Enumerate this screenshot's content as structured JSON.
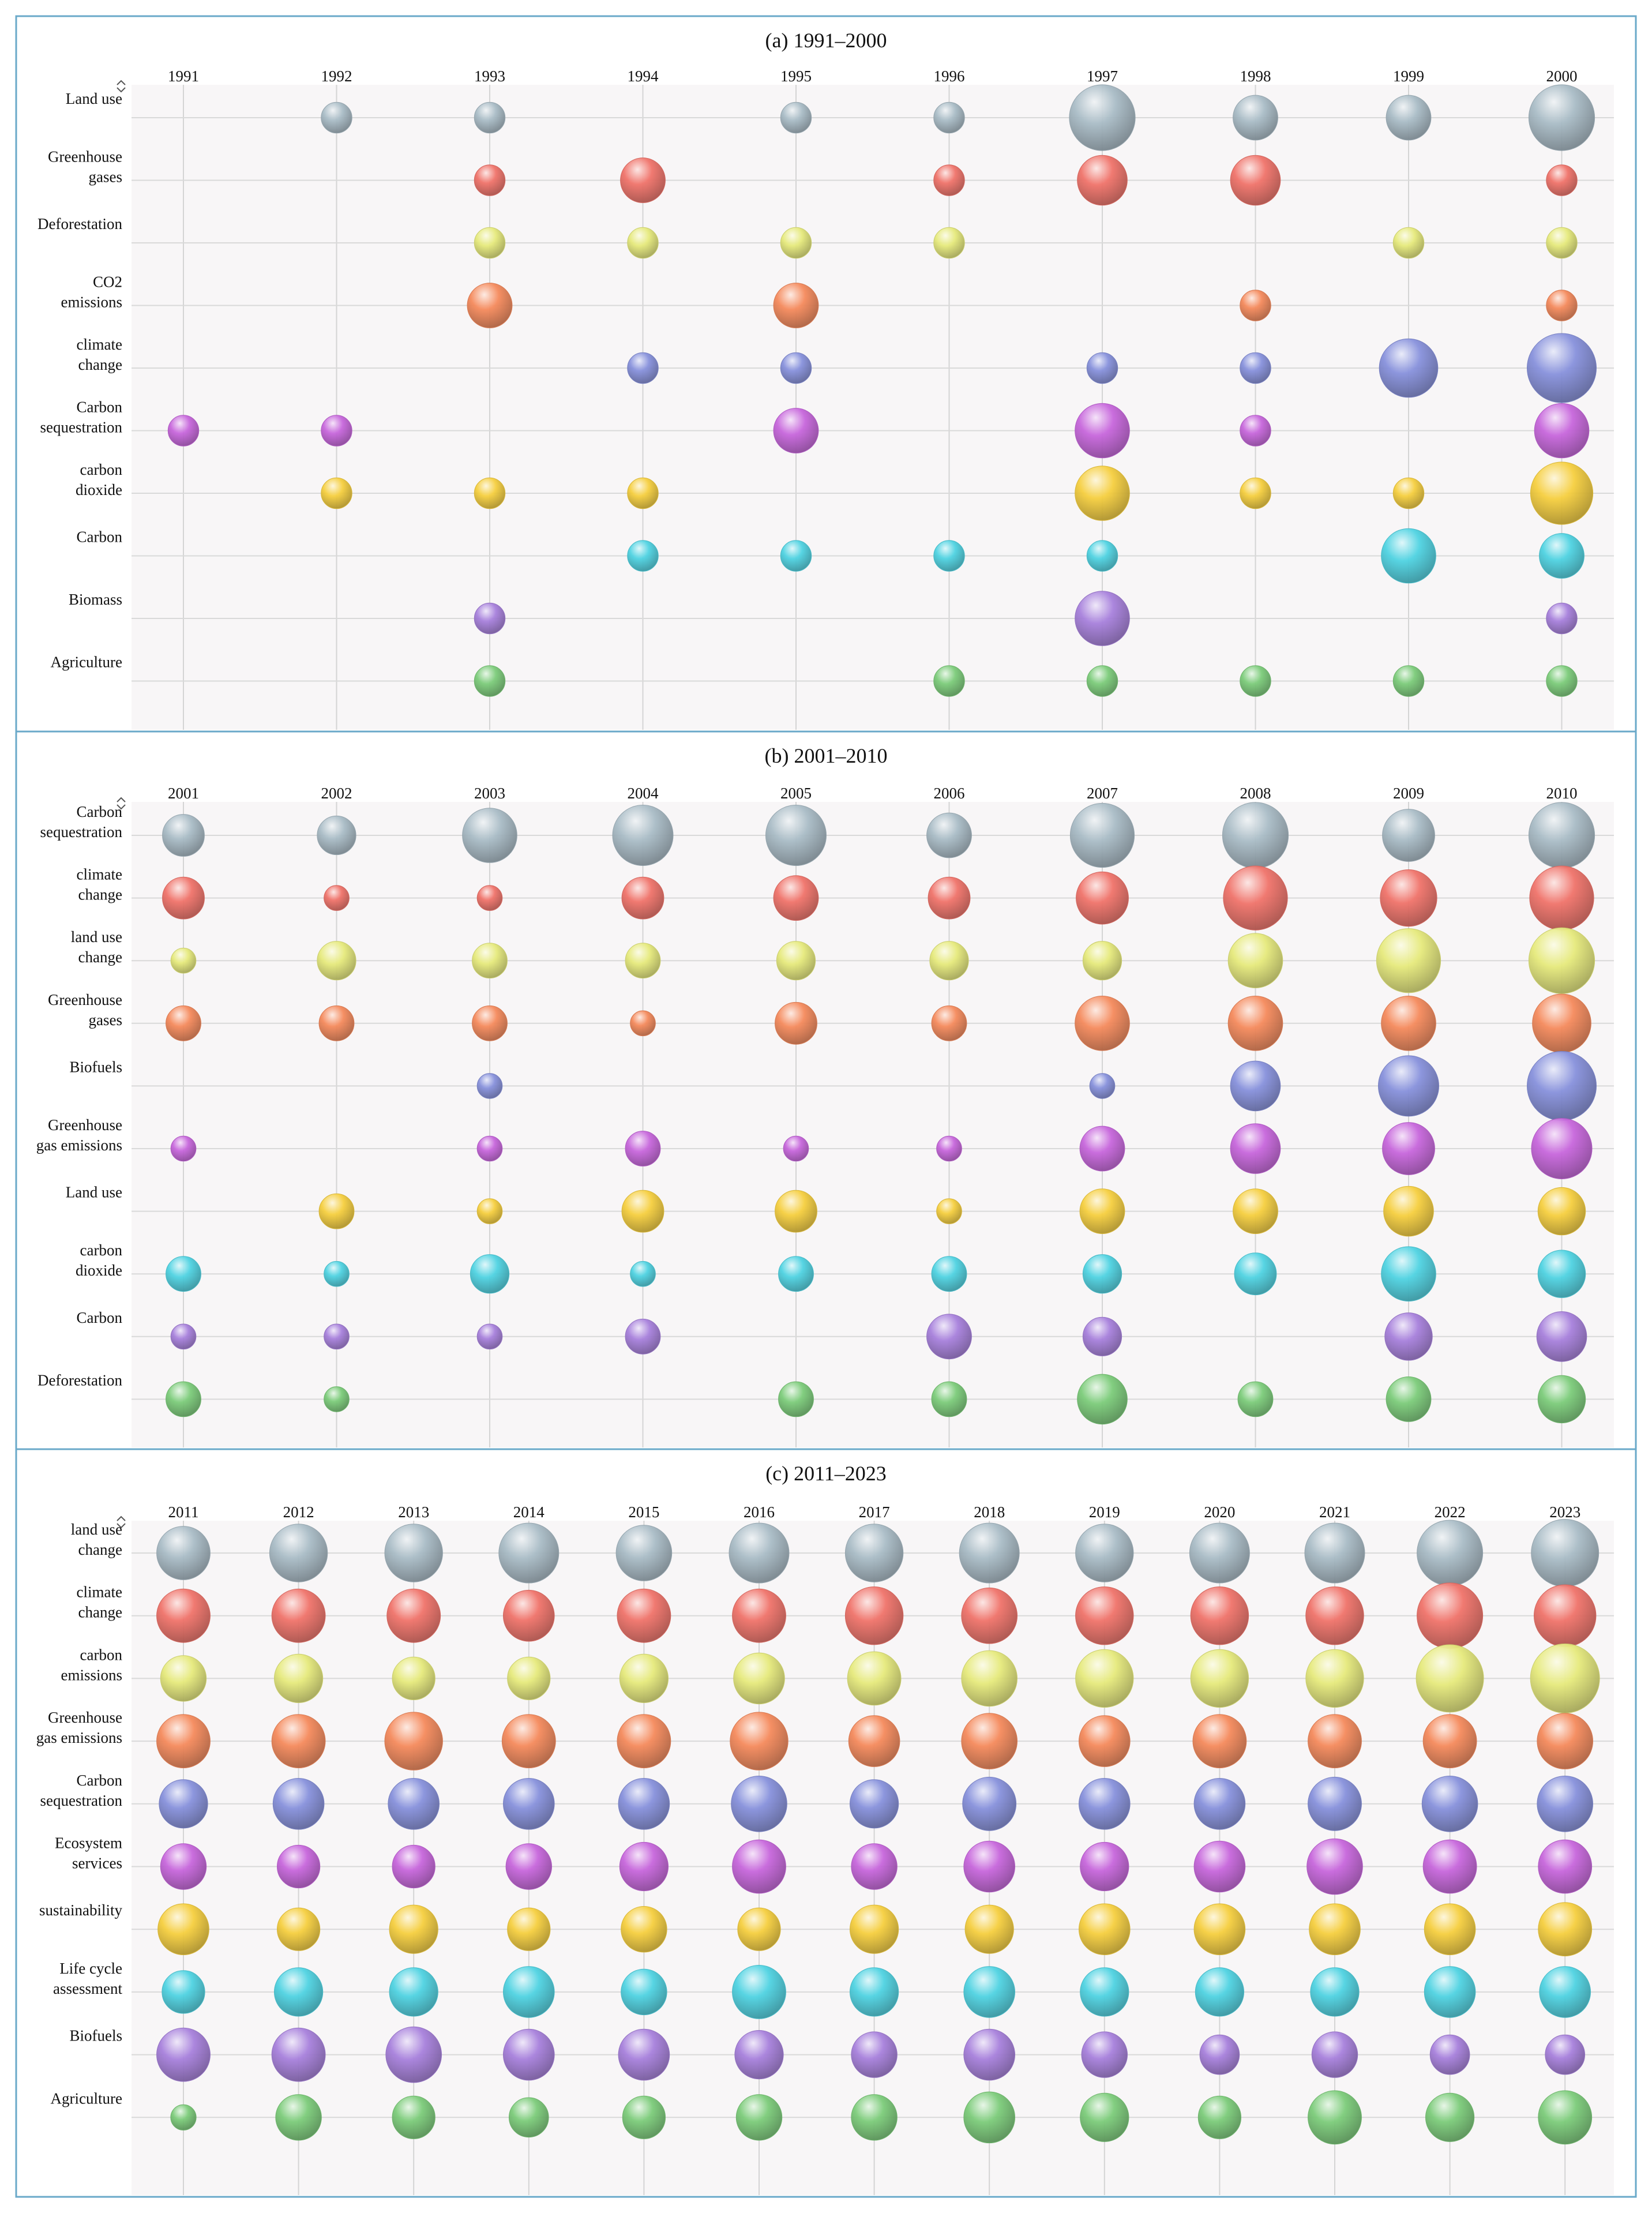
{
  "chart_data": [
    {
      "type": "bubble",
      "title": "(a) 1991–2000",
      "xlabel": "",
      "ylabel": "",
      "years": [
        "1991",
        "1992",
        "1993",
        "1994",
        "1995",
        "1996",
        "1997",
        "1998",
        "1999",
        "2000"
      ],
      "series": [
        {
          "name": "Land use",
          "lines": [
            "Land use"
          ],
          "color": "#a9bcc6",
          "values": [
            0,
            1,
            1,
            0,
            1,
            1,
            8,
            3,
            3,
            8
          ]
        },
        {
          "name": "Greenhouse gases",
          "lines": [
            "Greenhouse",
            "gases"
          ],
          "color": "#f0736a",
          "values": [
            0,
            0,
            1,
            3,
            0,
            1,
            4,
            4,
            0,
            1
          ]
        },
        {
          "name": "Deforestation",
          "lines": [
            "Deforestation"
          ],
          "color": "#e6ea7c",
          "values": [
            0,
            0,
            1,
            1,
            1,
            1,
            0,
            0,
            1,
            1
          ]
        },
        {
          "name": "CO2 emissions",
          "lines": [
            "CO2",
            "emissions"
          ],
          "color": "#f58a5c",
          "values": [
            0,
            0,
            3,
            0,
            3,
            0,
            0,
            1,
            0,
            1
          ]
        },
        {
          "name": "climate change",
          "lines": [
            "climate",
            "change"
          ],
          "color": "#8791dc",
          "values": [
            0,
            0,
            0,
            1,
            1,
            0,
            1,
            1,
            6,
            9
          ]
        },
        {
          "name": "Carbon sequestration",
          "lines": [
            "Carbon",
            "sequestration"
          ],
          "color": "#c766dc",
          "values": [
            1,
            1,
            0,
            0,
            3,
            0,
            5,
            1,
            0,
            5
          ]
        },
        {
          "name": "carbon dioxide",
          "lines": [
            "carbon",
            "dioxide"
          ],
          "color": "#f6cf3f",
          "values": [
            0,
            1,
            1,
            1,
            0,
            0,
            5,
            1,
            1,
            7
          ]
        },
        {
          "name": "Carbon",
          "lines": [
            "Carbon"
          ],
          "color": "#4fd3e2",
          "values": [
            0,
            0,
            0,
            1,
            1,
            1,
            1,
            0,
            5,
            3
          ]
        },
        {
          "name": "Biomass",
          "lines": [
            "Biomass"
          ],
          "color": "#a780dc",
          "values": [
            0,
            0,
            1,
            0,
            0,
            0,
            5,
            0,
            0,
            1
          ]
        },
        {
          "name": "Agriculture",
          "lines": [
            "Agriculture"
          ],
          "color": "#7ccc7a",
          "values": [
            0,
            0,
            1,
            0,
            0,
            1,
            1,
            1,
            1,
            1
          ]
        }
      ]
    },
    {
      "type": "bubble",
      "title": "(b) 2001–2010",
      "xlabel": "",
      "ylabel": "",
      "years": [
        "2001",
        "2002",
        "2003",
        "2004",
        "2005",
        "2006",
        "2007",
        "2008",
        "2009",
        "2010"
      ],
      "series": [
        {
          "name": "Carbon sequestration",
          "lines": [
            "Carbon",
            "sequestration"
          ],
          "color": "#a9bcc6",
          "values": [
            5,
            4,
            10,
            13,
            13,
            6,
            15,
            16,
            9,
            16
          ]
        },
        {
          "name": "climate change",
          "lines": [
            "climate",
            "change"
          ],
          "color": "#f0736a",
          "values": [
            5,
            1,
            1,
            5,
            6,
            5,
            9,
            15,
            11,
            15
          ]
        },
        {
          "name": "land use change",
          "lines": [
            "land use",
            "change"
          ],
          "color": "#e6ea7c",
          "values": [
            1,
            4,
            3,
            3,
            4,
            4,
            4,
            10,
            15,
            16
          ]
        },
        {
          "name": "Greenhouse gases",
          "lines": [
            "Greenhouse",
            "gases"
          ],
          "color": "#f58a5c",
          "values": [
            3,
            3,
            3,
            1,
            5,
            3,
            10,
            10,
            10,
            12
          ]
        },
        {
          "name": "Biofuels",
          "lines": [
            "Biofuels"
          ],
          "color": "#8791dc",
          "values": [
            0,
            0,
            1,
            0,
            0,
            0,
            1,
            8,
            13,
            18
          ]
        },
        {
          "name": "Greenhouse gas emissions",
          "lines": [
            "Greenhouse",
            "gas emissions"
          ],
          "color": "#c766dc",
          "values": [
            1,
            0,
            1,
            3,
            1,
            1,
            6,
            8,
            9,
            13
          ]
        },
        {
          "name": "Land use",
          "lines": [
            "Land use"
          ],
          "color": "#f6cf3f",
          "values": [
            0,
            3,
            1,
            5,
            5,
            1,
            6,
            6,
            8,
            7
          ]
        },
        {
          "name": "carbon dioxide",
          "lines": [
            "carbon",
            "dioxide"
          ],
          "color": "#4fd3e2",
          "values": [
            3,
            1,
            4,
            1,
            3,
            3,
            4,
            5,
            10,
            7
          ]
        },
        {
          "name": "Carbon",
          "lines": [
            "Carbon"
          ],
          "color": "#a780dc",
          "values": [
            1,
            1,
            1,
            3,
            0,
            6,
            4,
            0,
            7,
            8
          ]
        },
        {
          "name": "Deforestation",
          "lines": [
            "Deforestation"
          ],
          "color": "#7ccc7a",
          "values": [
            3,
            1,
            0,
            0,
            3,
            3,
            8,
            3,
            6,
            7
          ]
        }
      ]
    },
    {
      "type": "bubble",
      "title": "(c) 2011–2023",
      "xlabel": "",
      "ylabel": "",
      "years": [
        "2011",
        "2012",
        "2013",
        "2014",
        "2015",
        "2016",
        "2017",
        "2018",
        "2019",
        "2020",
        "2021",
        "2022",
        "2023"
      ],
      "series": [
        {
          "name": "land use change",
          "lines": [
            "land use",
            "change"
          ],
          "color": "#a9bcc6",
          "values": [
            9,
            11,
            11,
            12,
            10,
            12,
            11,
            12,
            11,
            12,
            12,
            15,
            16
          ]
        },
        {
          "name": "climate change",
          "lines": [
            "climate",
            "change"
          ],
          "color": "#f0736a",
          "values": [
            9,
            9,
            9,
            8,
            9,
            9,
            11,
            10,
            11,
            11,
            11,
            15,
            13
          ]
        },
        {
          "name": "carbon emissions",
          "lines": [
            "carbon",
            "emissions"
          ],
          "color": "#e6ea7c",
          "values": [
            6,
            7,
            5,
            5,
            7,
            8,
            9,
            10,
            11,
            11,
            11,
            16,
            17
          ]
        },
        {
          "name": "Greenhouse gas emissions",
          "lines": [
            "Greenhouse",
            "gas emissions"
          ],
          "color": "#f58a5c",
          "values": [
            9,
            9,
            11,
            9,
            9,
            11,
            8,
            10,
            8,
            9,
            9,
            9,
            10
          ]
        },
        {
          "name": "Carbon sequestration",
          "lines": [
            "Carbon",
            "sequestration"
          ],
          "color": "#8791dc",
          "values": [
            7,
            8,
            8,
            8,
            8,
            10,
            7,
            9,
            8,
            8,
            9,
            10,
            10
          ]
        },
        {
          "name": "Ecosystem services",
          "lines": [
            "Ecosystem",
            "services"
          ],
          "color": "#c766dc",
          "values": [
            6,
            5,
            5,
            6,
            7,
            9,
            6,
            8,
            7,
            8,
            10,
            9,
            9
          ]
        },
        {
          "name": "sustainability",
          "lines": [
            "sustainability"
          ],
          "color": "#f6cf3f",
          "values": [
            8,
            5,
            7,
            5,
            6,
            5,
            7,
            7,
            8,
            8,
            8,
            8,
            9
          ]
        },
        {
          "name": "Life cycle assessment",
          "lines": [
            "Life cycle",
            "assessment"
          ],
          "color": "#4fd3e2",
          "values": [
            5,
            7,
            7,
            8,
            6,
            9,
            7,
            8,
            7,
            7,
            7,
            8,
            8
          ]
        },
        {
          "name": "Biofuels",
          "lines": [
            "Biofuels"
          ],
          "color": "#a780dc",
          "values": [
            9,
            9,
            10,
            8,
            8,
            7,
            6,
            8,
            6,
            4,
            6,
            4,
            4
          ]
        },
        {
          "name": "Agriculture",
          "lines": [
            "Agriculture"
          ],
          "color": "#7ccc7a",
          "values": [
            1,
            6,
            5,
            4,
            5,
            6,
            6,
            8,
            7,
            5,
            9,
            7,
            9
          ]
        }
      ]
    }
  ]
}
